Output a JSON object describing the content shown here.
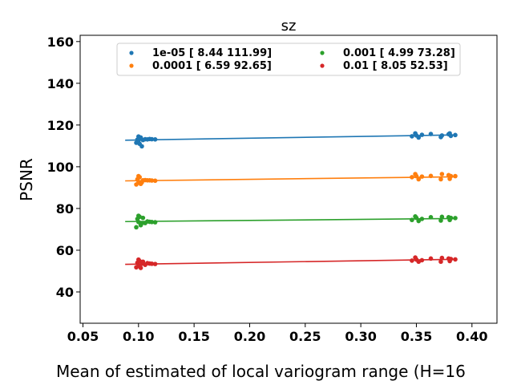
{
  "chart_data": {
    "type": "scatter",
    "title": "sz",
    "xlabel": "Mean of estimated of local variogram range (H=16",
    "ylabel": "PSNR",
    "xlim": [
      0.0475,
      0.4225
    ],
    "ylim": [
      25,
      163
    ],
    "xticks": [
      "0.05",
      "0.10",
      "0.15",
      "0.20",
      "0.25",
      "0.30",
      "0.35",
      "0.40"
    ],
    "xtick_values": [
      0.05,
      0.1,
      0.15,
      0.2,
      0.25,
      0.3,
      0.35,
      0.4
    ],
    "yticks": [
      "40",
      "60",
      "80",
      "100",
      "120",
      "140",
      "160"
    ],
    "ytick_values": [
      40,
      60,
      80,
      100,
      120,
      140,
      160
    ],
    "grid": false,
    "legend_placement": "top-center, 2 columns",
    "fit_x_range": [
      0.088,
      0.386
    ],
    "series": [
      {
        "name": "1e-05 [  8.44 111.99]",
        "color": "#1f77b4",
        "fit": [
          8.44,
          111.99
        ],
        "x": [
          0.098,
          0.099,
          0.1,
          0.1,
          0.101,
          0.101,
          0.102,
          0.103,
          0.104,
          0.106,
          0.108,
          0.11,
          0.112,
          0.115,
          0.346,
          0.349,
          0.35,
          0.352,
          0.355,
          0.363,
          0.372,
          0.373,
          0.379,
          0.38,
          0.381,
          0.385
        ],
        "y": [
          111.5,
          113.0,
          114.5,
          112.5,
          113.5,
          111.0,
          114.0,
          109.8,
          112.8,
          113.2,
          113.1,
          113.3,
          113.2,
          113.1,
          114.6,
          116.0,
          115.0,
          114.0,
          115.3,
          115.7,
          114.2,
          115.0,
          115.6,
          116.0,
          114.8,
          115.2
        ]
      },
      {
        "name": "0.0001 [ 6.59 92.65]",
        "color": "#ff7f0e",
        "fit": [
          6.59,
          92.65
        ],
        "x": [
          0.098,
          0.099,
          0.1,
          0.1,
          0.101,
          0.102,
          0.103,
          0.104,
          0.106,
          0.108,
          0.11,
          0.112,
          0.115,
          0.346,
          0.349,
          0.35,
          0.352,
          0.355,
          0.363,
          0.372,
          0.373,
          0.379,
          0.38,
          0.381,
          0.385
        ],
        "y": [
          91.5,
          94.0,
          95.5,
          92.5,
          95.0,
          91.8,
          92.5,
          93.5,
          93.6,
          93.5,
          93.5,
          93.4,
          93.3,
          95.0,
          96.5,
          95.5,
          94.0,
          95.3,
          95.6,
          94.0,
          96.5,
          96.0,
          94.2,
          95.5,
          95.5
        ]
      },
      {
        "name": "0.001 [ 4.99 73.28]",
        "color": "#2ca02c",
        "fit": [
          4.99,
          73.28
        ],
        "x": [
          0.098,
          0.099,
          0.1,
          0.1,
          0.101,
          0.102,
          0.103,
          0.104,
          0.106,
          0.108,
          0.11,
          0.112,
          0.115,
          0.346,
          0.349,
          0.35,
          0.352,
          0.355,
          0.363,
          0.372,
          0.373,
          0.379,
          0.38,
          0.381,
          0.385
        ],
        "y": [
          71.0,
          75.0,
          76.5,
          73.5,
          76.0,
          72.0,
          73.0,
          75.5,
          73.0,
          73.8,
          73.6,
          73.5,
          73.4,
          74.5,
          76.2,
          75.5,
          74.0,
          75.0,
          75.8,
          74.2,
          76.0,
          75.8,
          74.5,
          75.5,
          75.4
        ]
      },
      {
        "name": "0.01 [ 8.05 52.53]",
        "color": "#d62728",
        "fit": [
          8.05,
          52.53
        ],
        "x": [
          0.098,
          0.099,
          0.1,
          0.1,
          0.101,
          0.102,
          0.103,
          0.104,
          0.106,
          0.108,
          0.11,
          0.112,
          0.115,
          0.346,
          0.349,
          0.35,
          0.352,
          0.355,
          0.363,
          0.372,
          0.373,
          0.379,
          0.38,
          0.381,
          0.385
        ],
        "y": [
          51.8,
          54.0,
          55.5,
          52.5,
          54.8,
          51.5,
          53.5,
          54.5,
          53.0,
          53.8,
          53.6,
          53.5,
          53.4,
          55.0,
          56.5,
          55.5,
          54.5,
          55.2,
          56.0,
          54.5,
          56.3,
          56.0,
          54.8,
          55.8,
          55.6
        ]
      }
    ]
  }
}
